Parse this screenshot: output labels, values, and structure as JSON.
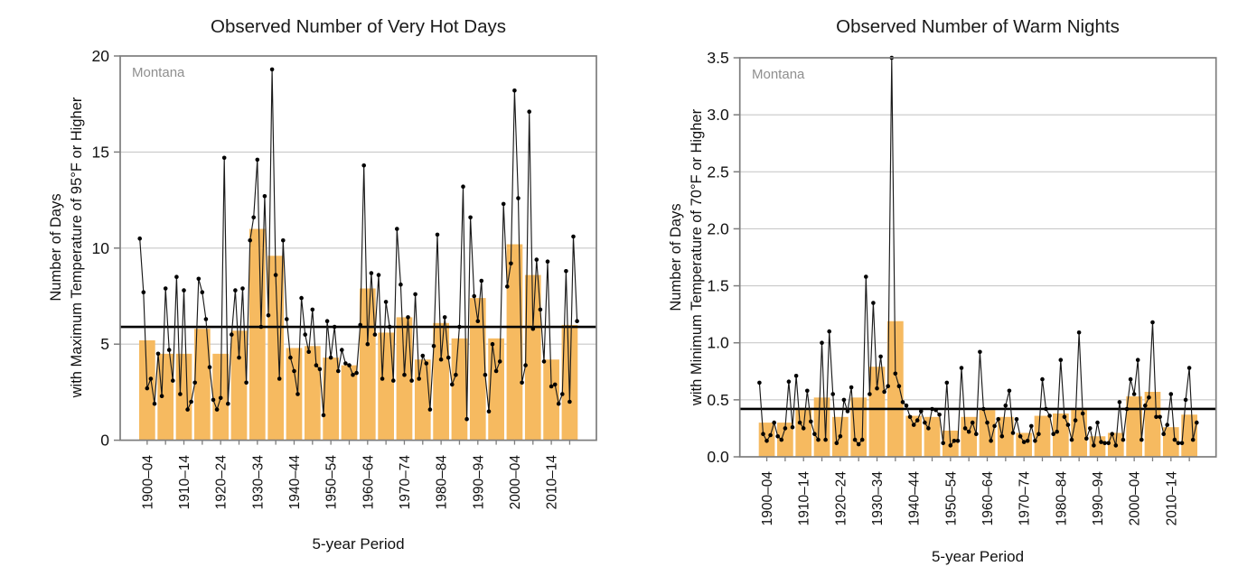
{
  "page": {
    "background": "#ffffff"
  },
  "chart_data": [
    {
      "type": "bar+line",
      "title": "Observed Number of Very Hot Days",
      "region_label": "Montana",
      "xlabel": "5-year Period",
      "ylabel_line1": "Number of Days",
      "ylabel_line2": "with Maximum Temperature of 95°F or Higher",
      "ylim": [
        0,
        20
      ],
      "yticks": [
        0,
        5,
        10,
        15,
        20
      ],
      "ytick_decimals": 0,
      "grid": true,
      "legend_position": "none",
      "average_line": 5.9,
      "colors": {
        "bar": "#F6BA60",
        "annual_line": "#1a1a1a",
        "dot": "#000000",
        "average": "#000000",
        "frame": "#7d7d7d",
        "gridline": "#c9c9c9"
      },
      "x_tick_labels": [
        "1900–04",
        "1910–14",
        "1920–24",
        "1930–34",
        "1940–44",
        "1950–54",
        "1960–64",
        "1970–74",
        "1980–84",
        "1990–94",
        "2000–04",
        "2010–14"
      ],
      "bar_series": {
        "name": "5-year average",
        "periods": [
          "1900-04",
          "1905-09",
          "1910-14",
          "1915-19",
          "1920-24",
          "1925-29",
          "1930-34",
          "1935-39",
          "1940-44",
          "1945-49",
          "1950-54",
          "1955-59",
          "1960-64",
          "1965-69",
          "1970-74",
          "1975-79",
          "1980-84",
          "1985-89",
          "1990-94",
          "1995-99",
          "2000-04",
          "2005-09",
          "2010-14",
          "2015-19"
        ],
        "values": [
          5.2,
          4.5,
          4.5,
          5.8,
          4.5,
          5.7,
          11.0,
          9.6,
          4.8,
          4.9,
          4.3,
          3.9,
          7.9,
          5.6,
          6.4,
          4.2,
          6.1,
          5.3,
          7.4,
          5.3,
          10.2,
          8.6,
          4.2,
          6.0
        ]
      },
      "annual_series": {
        "name": "annual value",
        "start_year": 1900,
        "values": [
          10.5,
          7.7,
          2.7,
          3.2,
          1.9,
          4.5,
          2.3,
          7.9,
          4.7,
          3.1,
          8.5,
          2.4,
          7.8,
          1.6,
          2.0,
          3.0,
          8.4,
          7.7,
          6.3,
          3.8,
          2.1,
          1.6,
          2.2,
          14.7,
          1.9,
          5.5,
          7.8,
          4.3,
          7.9,
          3.0,
          10.4,
          11.6,
          14.6,
          5.9,
          12.7,
          6.5,
          19.3,
          8.6,
          3.2,
          10.4,
          6.3,
          4.3,
          3.6,
          2.4,
          7.4,
          5.5,
          4.6,
          6.8,
          3.9,
          3.7,
          1.3,
          6.2,
          4.3,
          5.9,
          3.6,
          4.7,
          4.0,
          3.9,
          3.4,
          3.5,
          6.0,
          14.3,
          5.0,
          8.7,
          5.5,
          8.6,
          3.2,
          7.2,
          5.9,
          3.1,
          11.0,
          8.1,
          3.4,
          6.4,
          3.1,
          7.6,
          3.2,
          4.4,
          4.0,
          1.6,
          4.9,
          10.7,
          4.2,
          6.4,
          4.3,
          2.9,
          3.4,
          5.9,
          13.2,
          1.1,
          11.6,
          7.5,
          6.2,
          8.3,
          3.4,
          1.5,
          5.0,
          3.6,
          4.1,
          12.3,
          8.0,
          9.2,
          18.2,
          12.6,
          3.0,
          3.9,
          17.1,
          5.8,
          9.4,
          6.8,
          4.1,
          9.3,
          2.8,
          2.9,
          1.9,
          2.4,
          8.8,
          2.0,
          10.6,
          6.2
        ]
      }
    },
    {
      "type": "bar+line",
      "title": "Observed Number of Warm Nights",
      "region_label": "Montana",
      "xlabel": "5-year Period",
      "ylabel_line1": "Number of Days",
      "ylabel_line2": "with Minimum Temperature of 70°F or Higher",
      "ylim": [
        0,
        3.5
      ],
      "yticks": [
        0,
        0.5,
        1.0,
        1.5,
        2.0,
        2.5,
        3.0,
        3.5
      ],
      "ytick_decimals": 1,
      "grid": true,
      "legend_position": "none",
      "average_line": 0.42,
      "colors": {
        "bar": "#F6BA60",
        "annual_line": "#1a1a1a",
        "dot": "#000000",
        "average": "#000000",
        "frame": "#7d7d7d",
        "gridline": "#c9c9c9"
      },
      "x_tick_labels": [
        "1900–04",
        "1910–14",
        "1920–24",
        "1930–34",
        "1940–44",
        "1950–54",
        "1960–64",
        "1970–74",
        "1980–84",
        "1990–94",
        "2000–04",
        "2010–14"
      ],
      "bar_series": {
        "name": "5-year average",
        "periods": [
          "1900-04",
          "1905-09",
          "1910-14",
          "1915-19",
          "1920-24",
          "1925-29",
          "1930-34",
          "1935-39",
          "1940-44",
          "1945-49",
          "1950-54",
          "1955-59",
          "1960-64",
          "1965-69",
          "1970-74",
          "1975-79",
          "1980-84",
          "1985-89",
          "1990-94",
          "1995-99",
          "2000-04",
          "2005-09",
          "2010-14",
          "2015-19"
        ],
        "values": [
          0.3,
          0.3,
          0.43,
          0.52,
          0.35,
          0.52,
          0.79,
          1.19,
          0.36,
          0.35,
          0.23,
          0.35,
          0.41,
          0.35,
          0.21,
          0.36,
          0.38,
          0.42,
          0.18,
          0.21,
          0.53,
          0.57,
          0.26,
          0.37
        ]
      },
      "annual_series": {
        "name": "annual value",
        "start_year": 1900,
        "values": [
          0.65,
          0.2,
          0.14,
          0.19,
          0.3,
          0.18,
          0.15,
          0.25,
          0.66,
          0.26,
          0.71,
          0.3,
          0.25,
          0.58,
          0.31,
          0.2,
          0.15,
          1.0,
          0.15,
          1.1,
          0.55,
          0.12,
          0.18,
          0.5,
          0.4,
          0.61,
          0.15,
          0.11,
          0.15,
          1.58,
          0.55,
          1.35,
          0.6,
          0.88,
          0.57,
          0.62,
          3.5,
          0.73,
          0.62,
          0.48,
          0.45,
          0.35,
          0.28,
          0.32,
          0.4,
          0.3,
          0.25,
          0.42,
          0.41,
          0.37,
          0.12,
          0.65,
          0.1,
          0.14,
          0.14,
          0.78,
          0.25,
          0.22,
          0.3,
          0.2,
          0.92,
          0.42,
          0.3,
          0.14,
          0.27,
          0.33,
          0.18,
          0.45,
          0.58,
          0.21,
          0.33,
          0.18,
          0.13,
          0.14,
          0.27,
          0.14,
          0.2,
          0.68,
          0.42,
          0.36,
          0.2,
          0.22,
          0.85,
          0.35,
          0.28,
          0.15,
          0.32,
          1.09,
          0.38,
          0.16,
          0.25,
          0.1,
          0.3,
          0.13,
          0.12,
          0.12,
          0.2,
          0.1,
          0.48,
          0.15,
          0.42,
          0.68,
          0.55,
          0.85,
          0.15,
          0.45,
          0.52,
          1.18,
          0.35,
          0.35,
          0.2,
          0.28,
          0.55,
          0.15,
          0.12,
          0.12,
          0.5,
          0.78,
          0.15,
          0.3
        ]
      }
    }
  ]
}
